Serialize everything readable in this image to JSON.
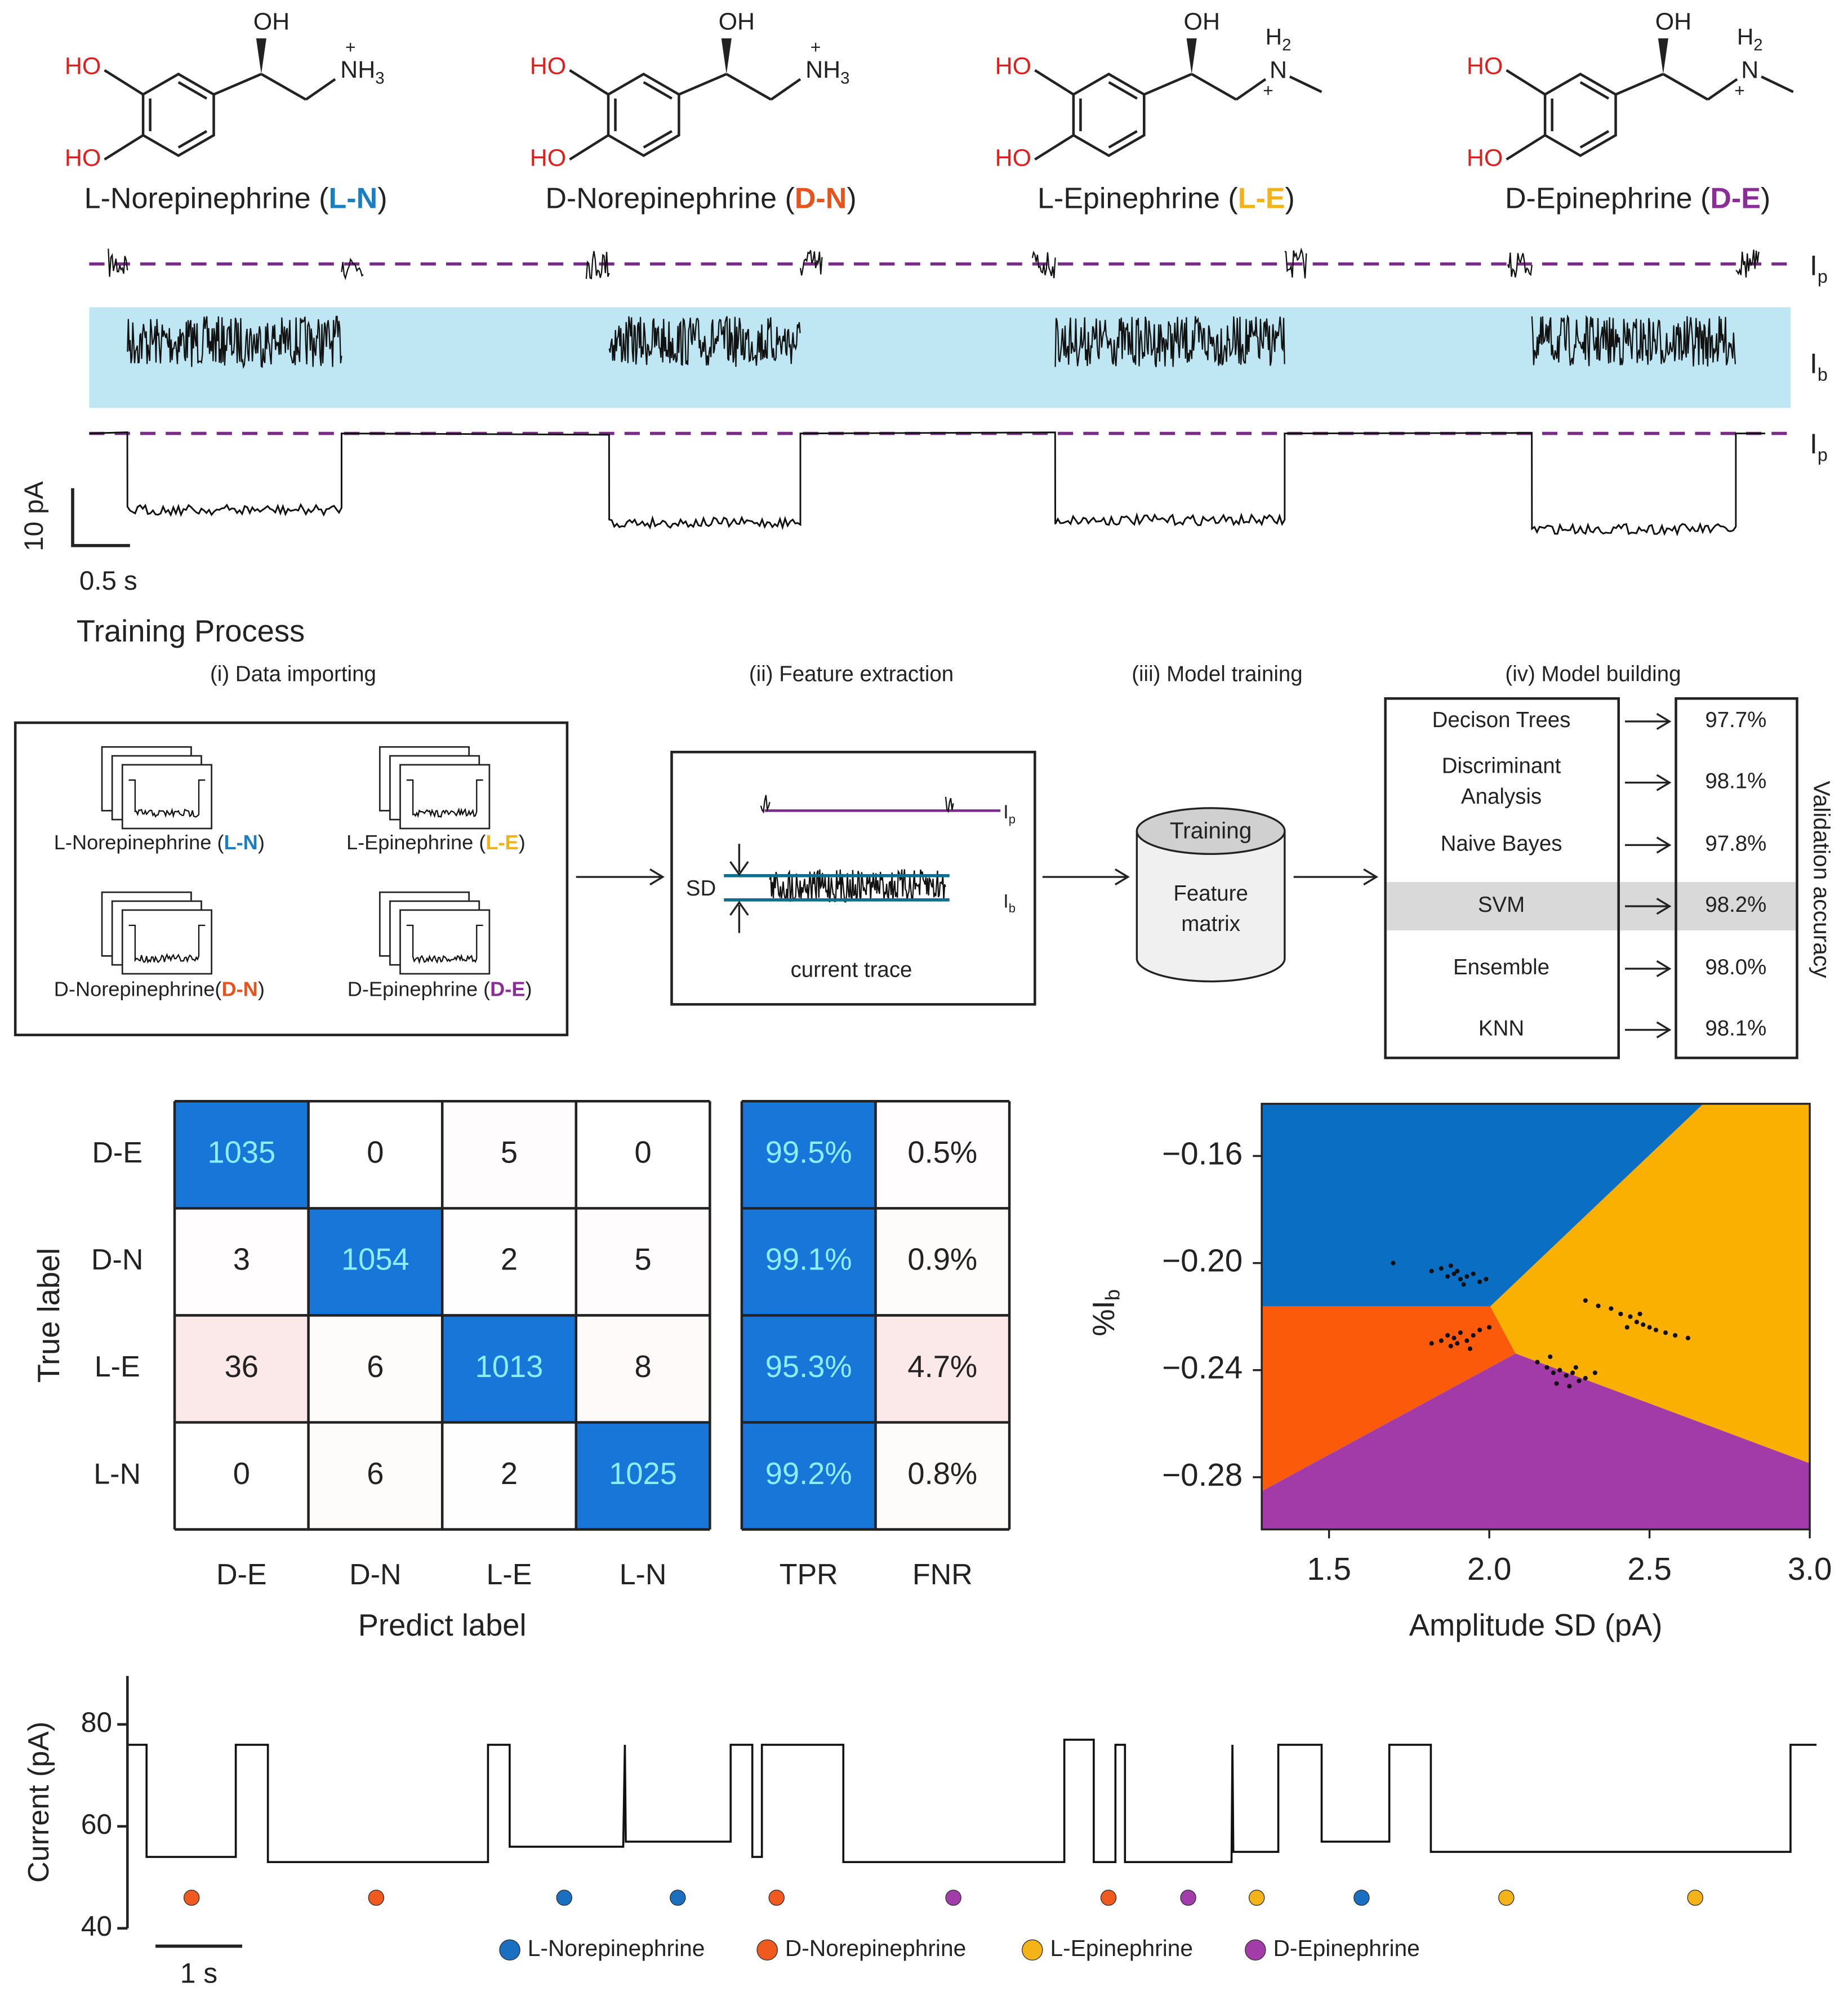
{
  "molecules": [
    {
      "prefix": "L-Norepinephrine (",
      "abbr": "L-N",
      "suffix": ")",
      "color": "#1a7fc0",
      "hydroxyl": "HO",
      "oh": "OH",
      "amine": {
        "main": "NH",
        "sub": "3",
        "charge": "+"
      }
    },
    {
      "prefix": "D-Norepinephrine (",
      "abbr": "D-N",
      "suffix": ")",
      "color": "#e8521c",
      "hydroxyl": "HO",
      "oh": "OH",
      "amine": {
        "main": "NH",
        "sub": "3",
        "charge": "+"
      }
    },
    {
      "prefix": "L-Epinephrine (",
      "abbr": "L-E",
      "suffix": ")",
      "color": "#f2b21a",
      "hydroxyl": "HO",
      "oh": "OH",
      "amine": {
        "main": "N",
        "top": "H",
        "top_sub": "2",
        "charge": "+"
      }
    },
    {
      "prefix": "D-Epinephrine (",
      "abbr": "D-E",
      "suffix": ")",
      "color": "#8b2d96",
      "hydroxyl": "HO",
      "oh": "OH",
      "amine": {
        "main": "N",
        "top": "H",
        "top_sub": "2",
        "charge": "+"
      }
    }
  ],
  "trace_panel": {
    "levels": [
      {
        "main": "I",
        "sub": "p"
      },
      {
        "main": "I",
        "sub": "b"
      },
      {
        "main": "I",
        "sub": "p"
      }
    ],
    "scale_y": "10 pA",
    "scale_x": "0.5 s"
  },
  "training": {
    "title": "Training Process",
    "steps": [
      "(i) Data importing",
      "(ii) Feature extraction",
      "(iii) Model training",
      "(iv) Model building"
    ],
    "imports": [
      {
        "prefix": "L-Norepinephrine (",
        "abbr": "L-N",
        "suffix": ")",
        "color": "#1a7fc0"
      },
      {
        "prefix": "L-Epinephrine (",
        "abbr": "L-E",
        "suffix": ")",
        "color": "#f2b21a"
      },
      {
        "prefix": "D-Norepinephrine(",
        "abbr": "D-N",
        "suffix": ")",
        "color": "#e8521c"
      },
      {
        "prefix": "D-Epinephrine (",
        "abbr": "D-E",
        "suffix": ")",
        "color": "#8b2d96"
      }
    ],
    "feature": {
      "sd": "SD",
      "ip": {
        "main": "I",
        "sub": "p"
      },
      "ib": {
        "main": "I",
        "sub": "b"
      },
      "caption": "current trace"
    },
    "store": {
      "top": "Training",
      "lines": [
        "Feature",
        "matrix"
      ]
    },
    "models": [
      {
        "lines": [
          "Decison Trees"
        ],
        "accuracy": "97.7%"
      },
      {
        "lines": [
          "Discriminant",
          "Analysis"
        ],
        "accuracy": "98.1%"
      },
      {
        "lines": [
          "Naive Bayes"
        ],
        "accuracy": "97.8%"
      },
      {
        "lines": [
          "SVM"
        ],
        "accuracy": "98.2%"
      },
      {
        "lines": [
          "Ensemble"
        ],
        "accuracy": "98.0%"
      },
      {
        "lines": [
          "KNN"
        ],
        "accuracy": "98.1%"
      }
    ],
    "highlight": 3,
    "highlight_color": "#d9d9d9",
    "accuracy_title": "Validation accuracy"
  },
  "chart_data": [
    {
      "type": "heatmap",
      "xlabel": "Predict label",
      "ylabel": "True label",
      "rows": [
        "D-E",
        "D-N",
        "L-E",
        "L-N"
      ],
      "categories": [
        "D-E",
        "D-N",
        "L-E",
        "L-N"
      ],
      "values": [
        [
          1035,
          0,
          5,
          0
        ],
        [
          3,
          1054,
          2,
          5
        ],
        [
          36,
          6,
          1013,
          8
        ],
        [
          0,
          6,
          2,
          1025
        ]
      ],
      "rate_names": [
        "TPR",
        "FNR"
      ],
      "rates": [
        [
          99.5,
          0.5
        ],
        [
          99.1,
          0.9
        ],
        [
          95.3,
          4.7
        ],
        [
          99.2,
          0.8
        ]
      ],
      "value_labels": [
        [
          "99.5%",
          "0.5%"
        ],
        [
          "99.1%",
          "0.9%"
        ],
        [
          "95.3%",
          "4.7%"
        ],
        [
          "99.2%",
          "0.8%"
        ]
      ],
      "color": "#1976d9",
      "text_color": "#8cefff",
      "off_color": "#f6cfcf"
    },
    {
      "type": "scatter",
      "xlabel": "Amplitude SD (pA)",
      "ylabel": "%I",
      "ylabel_sub": "b",
      "xlim": [
        1.29,
        3.0
      ],
      "ylim": [
        -0.2995,
        -0.1405
      ],
      "xticks": [
        1.5,
        {
          "value": 2,
          "label": "2.0"
        },
        2.5,
        {
          "value": 3,
          "label": "3.0"
        }
      ],
      "yticks": [
        {
          "value": -0.16,
          "label": "−0.16"
        },
        {
          "value": -0.2,
          "label": "−0.20"
        },
        {
          "value": -0.24,
          "label": "−0.24"
        },
        {
          "value": -0.28,
          "label": "−0.28"
        }
      ],
      "regions": [
        {
          "color": "#0a6fc2",
          "x": [
            1.29,
            2.668,
            2.003,
            1.29
          ],
          "y": [
            -0.1405,
            -0.1405,
            -0.2162,
            -0.2162
          ]
        },
        {
          "color": "#f9b000",
          "x": [
            2.668,
            3.0,
            3.0,
            2.082,
            2.003
          ],
          "y": [
            -0.1405,
            -0.1405,
            -0.2748,
            -0.2338,
            -0.2162
          ]
        },
        {
          "color": "#fb5a0a",
          "x": [
            1.29,
            2.003,
            2.082,
            1.29
          ],
          "y": [
            -0.2162,
            -0.2162,
            -0.2338,
            -0.2852
          ]
        },
        {
          "color": "#a23aa8",
          "x": [
            1.29,
            2.082,
            3.0,
            3.0,
            1.29
          ],
          "y": [
            -0.2852,
            -0.2338,
            -0.2748,
            -0.2995,
            -0.2995
          ]
        }
      ],
      "color": "#111111",
      "x": [
        1.82,
        1.85,
        1.87,
        1.89,
        1.9,
        1.91,
        1.93,
        1.95,
        1.97,
        1.88,
        1.92,
        1.7,
        1.99,
        1.82,
        1.85,
        1.87,
        1.89,
        1.91,
        1.93,
        1.95,
        1.97,
        1.88,
        1.9,
        1.94,
        2.0,
        2.15,
        2.18,
        2.2,
        2.22,
        2.24,
        2.26,
        2.28,
        2.3,
        2.21,
        2.25,
        2.27,
        2.19,
        2.33,
        2.3,
        2.34,
        2.38,
        2.41,
        2.44,
        2.46,
        2.48,
        2.5,
        2.52,
        2.55,
        2.58,
        2.62,
        2.47,
        2.43
      ],
      "y": [
        -0.203,
        -0.202,
        -0.205,
        -0.204,
        -0.203,
        -0.206,
        -0.205,
        -0.204,
        -0.207,
        -0.201,
        -0.208,
        -0.2,
        -0.206,
        -0.23,
        -0.229,
        -0.227,
        -0.228,
        -0.226,
        -0.229,
        -0.227,
        -0.225,
        -0.231,
        -0.23,
        -0.232,
        -0.224,
        -0.237,
        -0.239,
        -0.241,
        -0.24,
        -0.242,
        -0.241,
        -0.244,
        -0.243,
        -0.245,
        -0.246,
        -0.239,
        -0.235,
        -0.241,
        -0.214,
        -0.216,
        -0.217,
        -0.219,
        -0.22,
        -0.222,
        -0.223,
        -0.224,
        -0.225,
        -0.226,
        -0.227,
        -0.228,
        -0.219,
        -0.224
      ]
    },
    {
      "type": "line",
      "ylabel": "Current (pA)",
      "xlim": [
        0,
        19.5
      ],
      "ylim": [
        40,
        89.5
      ],
      "yticks": [
        40,
        60,
        80
      ],
      "color": "#111111",
      "x": [
        0,
        0.22,
        0.22,
        1.25,
        1.25,
        1.62,
        1.62,
        4.16,
        4.16,
        4.41,
        4.41,
        5.72,
        5.74,
        5.75,
        6.96,
        6.96,
        7.21,
        7.21,
        7.32,
        7.32,
        8.26,
        8.26,
        10.81,
        10.81,
        11.15,
        11.15,
        11.4,
        11.4,
        11.51,
        11.51,
        12.74,
        12.75,
        12.76,
        13.28,
        13.28,
        13.78,
        13.78,
        14.56,
        14.56,
        15.04,
        15.04,
        19.19,
        19.19,
        19.49
      ],
      "values": [
        76,
        76,
        54,
        54,
        76,
        76,
        53,
        53,
        76,
        76,
        56,
        56,
        76,
        57,
        57,
        76,
        76,
        54,
        54,
        76,
        76,
        53,
        53,
        77,
        77,
        53,
        53,
        76,
        76,
        53,
        53,
        76,
        55,
        55,
        76,
        76,
        57,
        57,
        76,
        76,
        55,
        55,
        76,
        76
      ],
      "scale_bar": {
        "value": 1,
        "label": "1 s"
      },
      "events": {
        "x": [
          0.74,
          2.87,
          5.04,
          6.35,
          7.49,
          9.53,
          11.32,
          12.24,
          13.03,
          14.24,
          15.91,
          18.09
        ],
        "class": [
          1,
          1,
          0,
          0,
          1,
          3,
          1,
          3,
          2,
          0,
          2,
          2
        ]
      },
      "legend": [
        {
          "name": "L-Norepinephrine",
          "color": "#1a6fc0"
        },
        {
          "name": "D-Norepinephrine",
          "color": "#f05a1e"
        },
        {
          "name": "L-Epinephrine",
          "color": "#f5b31a"
        },
        {
          "name": "D-Epinephrine",
          "color": "#a23ca8"
        }
      ]
    }
  ]
}
